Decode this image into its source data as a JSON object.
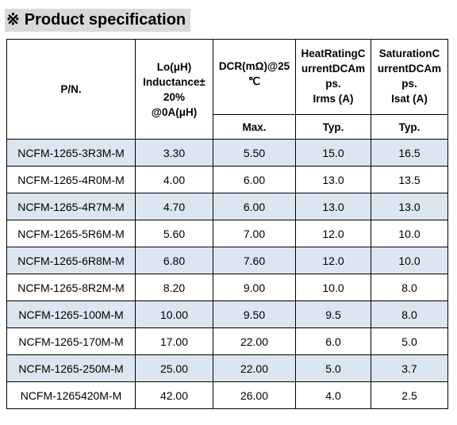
{
  "title": {
    "mark": "※",
    "text": "Product specification"
  },
  "table": {
    "headers": {
      "pn": "P/N.",
      "inductance": [
        "Lo(μH)",
        "Inductance±",
        "20%",
        "@0A(μH)"
      ],
      "dcr": [
        "DCR(mΩ)@25",
        "℃"
      ],
      "heat": [
        "HeatRatingC",
        "urrentDCAm",
        "ps.",
        "Irms  (A)"
      ],
      "sat": [
        "SaturationC",
        "urrentDCAm",
        "ps.",
        "Isat  (A)"
      ]
    },
    "subheaders": {
      "dcr": "Max.",
      "heat": "Typ.",
      "sat": "Typ."
    },
    "rows": [
      {
        "pn": "NCFM-1265-3R3M-M",
        "l": "3.30",
        "dcr": "5.50",
        "irms": "15.0",
        "isat": "16.5"
      },
      {
        "pn": "NCFM-1265-4R0M-M",
        "l": "4.00",
        "dcr": "6.00",
        "irms": "13.0",
        "isat": "13.5"
      },
      {
        "pn": "NCFM-1265-4R7M-M",
        "l": "4.70",
        "dcr": "6.00",
        "irms": "13.0",
        "isat": "13.0"
      },
      {
        "pn": "NCFM-1265-5R6M-M",
        "l": "5.60",
        "dcr": "7.00",
        "irms": "12.0",
        "isat": "10.0"
      },
      {
        "pn": "NCFM-1265-6R8M-M",
        "l": "6.80",
        "dcr": "7.60",
        "irms": "12.0",
        "isat": "10.0"
      },
      {
        "pn": "NCFM-1265-8R2M-M",
        "l": "8.20",
        "dcr": "9.00",
        "irms": "10.0",
        "isat": "8.0"
      },
      {
        "pn": "NCFM-1265-100M-M",
        "l": "10.00",
        "dcr": "9.50",
        "irms": "9.5",
        "isat": "8.0"
      },
      {
        "pn": "NCFM-1265-170M-M",
        "l": "17.00",
        "dcr": "22.00",
        "irms": "6.0",
        "isat": "5.0"
      },
      {
        "pn": "NCFM-1265-250M-M",
        "l": "25.00",
        "dcr": "22.00",
        "irms": "5.0",
        "isat": "3.7"
      },
      {
        "pn": "NCFM-1265420M-M",
        "l": "42.00",
        "dcr": "26.00",
        "irms": "4.0",
        "isat": "2.5"
      }
    ],
    "colors": {
      "shade": "#dce6f1",
      "title_bg": "#d9d9d9",
      "border": "#000000"
    }
  }
}
